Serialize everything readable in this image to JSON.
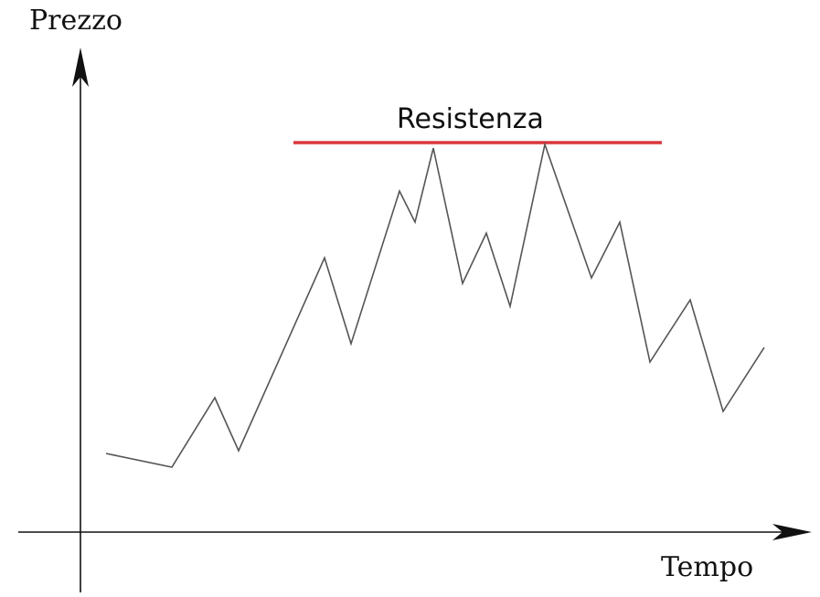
{
  "labels": {
    "y_axis": "Prezzo",
    "x_axis": "Tempo",
    "resistance": "Resistenza"
  },
  "colors": {
    "axes": "#111111",
    "price_line": "#555555",
    "resistance_line": "#d9373d"
  },
  "chart_data": {
    "type": "line",
    "xlabel": "Tempo",
    "ylabel": "Prezzo",
    "annotations": [
      "Resistenza"
    ]
  }
}
